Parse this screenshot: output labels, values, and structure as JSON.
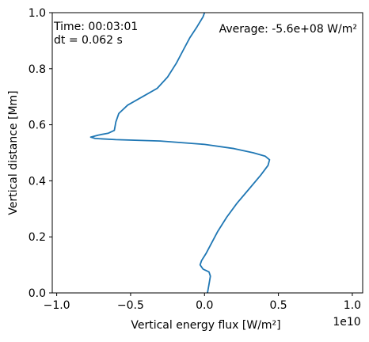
{
  "chart_data": {
    "type": "line",
    "xlabel": "Vertical energy flux [W/m²]",
    "ylabel": "Vertical distance [Mm]",
    "x_offset_label": "1e10",
    "x_scale": 10000000000.0,
    "xlim": [
      -10300000000.0,
      10700000000.0
    ],
    "ylim": [
      0,
      1
    ],
    "xticks": [
      -10000000000.0,
      -5000000000.0,
      0,
      5000000000.0,
      10000000000.0
    ],
    "xtick_labels": [
      "−1.0",
      "−0.5",
      "0.0",
      "0.5",
      "1.0"
    ],
    "yticks": [
      0,
      0.2,
      0.4,
      0.6,
      0.8,
      1.0
    ],
    "ytick_labels": [
      "0.0",
      "0.2",
      "0.4",
      "0.6",
      "0.8",
      "1.0"
    ],
    "grid": false,
    "annotations": {
      "time": "Time: 00:03:01",
      "dt": "dt = 0.062 s",
      "average": "Average: -5.6e+08 W/m²"
    },
    "series": [
      {
        "color": "#1f77b4",
        "points": [
          {
            "x": 0.0,
            "y": 1.0
          },
          {
            "x": -100000000.0,
            "y": 0.985
          },
          {
            "x": -500000000.0,
            "y": 0.95
          },
          {
            "x": -1000000000.0,
            "y": 0.91
          },
          {
            "x": -1400000000.0,
            "y": 0.87
          },
          {
            "x": -1900000000.0,
            "y": 0.82
          },
          {
            "x": -2500000000.0,
            "y": 0.77
          },
          {
            "x": -3200000000.0,
            "y": 0.73
          },
          {
            "x": -4200000000.0,
            "y": 0.7
          },
          {
            "x": -5200000000.0,
            "y": 0.67
          },
          {
            "x": -5800000000.0,
            "y": 0.64
          },
          {
            "x": -6000000000.0,
            "y": 0.61
          },
          {
            "x": -6100000000.0,
            "y": 0.58
          },
          {
            "x": -6500000000.0,
            "y": 0.57
          },
          {
            "x": -7200000000.0,
            "y": 0.563
          },
          {
            "x": -7700000000.0,
            "y": 0.556
          },
          {
            "x": -7400000000.0,
            "y": 0.551
          },
          {
            "x": -6000000000.0,
            "y": 0.547
          },
          {
            "x": -3000000000.0,
            "y": 0.542
          },
          {
            "x": 0.0,
            "y": 0.53
          },
          {
            "x": 2000000000.0,
            "y": 0.515
          },
          {
            "x": 3300000000.0,
            "y": 0.5
          },
          {
            "x": 4100000000.0,
            "y": 0.488
          },
          {
            "x": 4400000000.0,
            "y": 0.475
          },
          {
            "x": 4300000000.0,
            "y": 0.455
          },
          {
            "x": 3800000000.0,
            "y": 0.42
          },
          {
            "x": 3000000000.0,
            "y": 0.37
          },
          {
            "x": 2200000000.0,
            "y": 0.32
          },
          {
            "x": 1500000000.0,
            "y": 0.27
          },
          {
            "x": 900000000.0,
            "y": 0.22
          },
          {
            "x": 400000000.0,
            "y": 0.17
          },
          {
            "x": 100000000.0,
            "y": 0.14
          },
          {
            "x": -200000000.0,
            "y": 0.115
          },
          {
            "x": -300000000.0,
            "y": 0.1
          },
          {
            "x": -100000000.0,
            "y": 0.085
          },
          {
            "x": 300000000.0,
            "y": 0.075
          },
          {
            "x": 400000000.0,
            "y": 0.06
          },
          {
            "x": 300000000.0,
            "y": 0.03
          },
          {
            "x": 200000000.0,
            "y": 0.0
          }
        ]
      }
    ]
  }
}
